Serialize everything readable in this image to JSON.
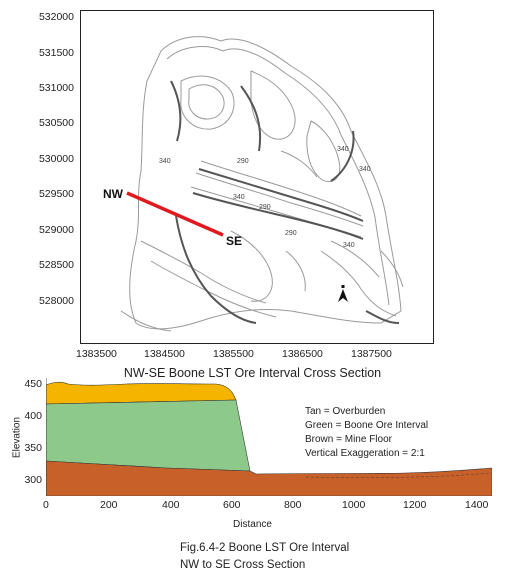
{
  "map": {
    "y_ticks": [
      "532000",
      "531500",
      "531000",
      "530500",
      "530000",
      "529500",
      "529000",
      "528500",
      "528000"
    ],
    "x_ticks": [
      "1383500",
      "1384500",
      "1385500",
      "1386500",
      "1387500"
    ],
    "contour_labels": [
      "340",
      "340",
      "340",
      "340",
      "340",
      "290",
      "290",
      "290"
    ],
    "section_start_label": "NW",
    "section_end_label": "SE",
    "north_arrow": "north-arrow-icon"
  },
  "cross_section": {
    "title": "NW-SE Boone LST Ore Interval Cross Section",
    "ylabel": "Elevation",
    "xlabel": "Distance",
    "y_ticks": [
      "450",
      "400",
      "350",
      "300"
    ],
    "x_ticks": [
      "0",
      "200",
      "400",
      "600",
      "800",
      "1000",
      "1200",
      "1400"
    ],
    "legend": [
      "Tan = Overburden",
      "Green = Boone Ore Interval",
      "Brown = Mine Floor",
      "Vertical Exaggeration = 2:1"
    ],
    "colors": {
      "overburden": "#f4b400",
      "ore": "#8dc98b",
      "floor": "#c8602a"
    }
  },
  "caption": {
    "line1": "Fig.6.4-2 Boone LST Ore Interval",
    "line2": "NW to SE Cross Section"
  }
}
